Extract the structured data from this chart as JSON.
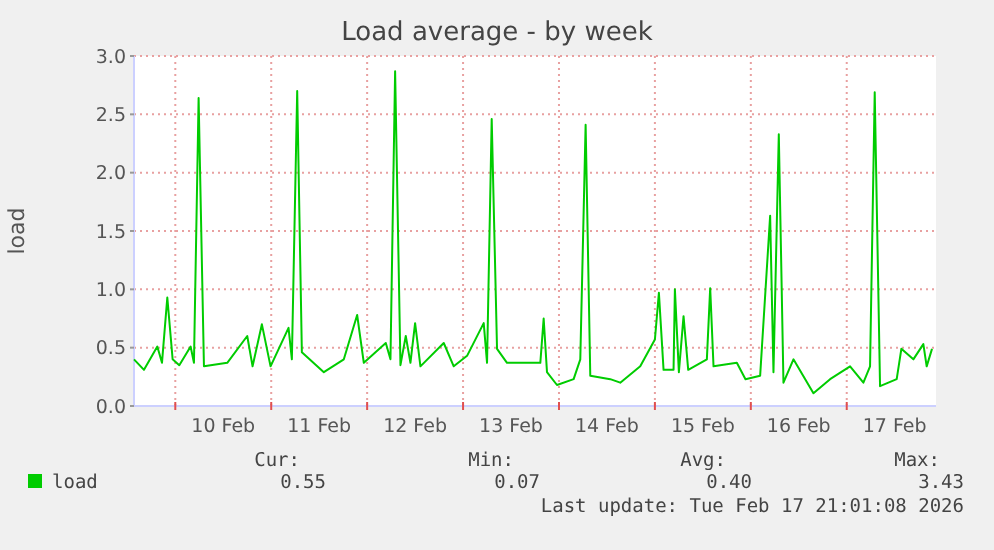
{
  "chart_data": {
    "type": "line",
    "title": "Load average - by week",
    "ylabel": "load",
    "xlim": [
      "2026-02-09T13:40",
      "2026-02-17T22:20"
    ],
    "xticks": [
      {
        "value": "2026-02-10T00:00",
        "label": null
      },
      {
        "value": "2026-02-10T12:00",
        "label": "10 Feb"
      },
      {
        "value": "2026-02-11T00:00",
        "label": null
      },
      {
        "value": "2026-02-11T12:00",
        "label": "11 Feb"
      },
      {
        "value": "2026-02-12T00:00",
        "label": null
      },
      {
        "value": "2026-02-12T12:00",
        "label": "12 Feb"
      },
      {
        "value": "2026-02-13T00:00",
        "label": null
      },
      {
        "value": "2026-02-13T12:00",
        "label": "13 Feb"
      },
      {
        "value": "2026-02-14T00:00",
        "label": null
      },
      {
        "value": "2026-02-14T12:00",
        "label": "14 Feb"
      },
      {
        "value": "2026-02-15T00:00",
        "label": null
      },
      {
        "value": "2026-02-15T12:00",
        "label": "15 Feb"
      },
      {
        "value": "2026-02-16T00:00",
        "label": null
      },
      {
        "value": "2026-02-16T12:00",
        "label": "16 Feb"
      },
      {
        "value": "2026-02-17T00:00",
        "label": null
      },
      {
        "value": "2026-02-17T12:00",
        "label": "17 Feb"
      }
    ],
    "ylim": [
      0,
      3
    ],
    "yticks": [
      {
        "value": 0,
        "label": "0.0"
      },
      {
        "value": 0.5,
        "label": "0.5"
      },
      {
        "value": 1,
        "label": "1.0"
      },
      {
        "value": 1.5,
        "label": "1.5"
      },
      {
        "value": 2,
        "label": "2.0"
      },
      {
        "value": 2.5,
        "label": "2.5"
      },
      {
        "value": 3,
        "label": "3.0"
      }
    ],
    "grid": true,
    "legend": "bottom",
    "x": [
      "2026-02-09T13:40",
      "2026-02-09T16:10",
      "2026-02-09T19:30",
      "2026-02-09T20:40",
      "2026-02-09T22:00",
      "2026-02-09T23:20",
      "2026-02-10T01:00",
      "2026-02-10T03:50",
      "2026-02-10T04:40",
      "2026-02-10T05:50",
      "2026-02-10T07:10",
      "2026-02-10T13:00",
      "2026-02-10T18:00",
      "2026-02-10T19:20",
      "2026-02-10T21:40",
      "2026-02-10T23:50",
      "2026-02-11T04:20",
      "2026-02-11T05:10",
      "2026-02-11T06:30",
      "2026-02-11T07:40",
      "2026-02-11T13:10",
      "2026-02-11T18:10",
      "2026-02-11T21:30",
      "2026-02-11T23:10",
      "2026-02-12T04:40",
      "2026-02-12T05:50",
      "2026-02-12T07:00",
      "2026-02-12T08:20",
      "2026-02-12T09:40",
      "2026-02-12T10:50",
      "2026-02-12T12:00",
      "2026-02-12T13:20",
      "2026-02-12T19:10",
      "2026-02-12T21:40",
      "2026-02-13T01:00",
      "2026-02-13T05:10",
      "2026-02-13T06:00",
      "2026-02-13T07:10",
      "2026-02-13T08:30",
      "2026-02-13T11:00",
      "2026-02-13T19:20",
      "2026-02-13T20:10",
      "2026-02-13T21:00",
      "2026-02-13T23:30",
      "2026-02-14T03:40",
      "2026-02-14T05:20",
      "2026-02-14T06:40",
      "2026-02-14T07:50",
      "2026-02-14T12:50",
      "2026-02-14T15:20",
      "2026-02-14T20:20",
      "2026-02-15T00:00",
      "2026-02-15T01:00",
      "2026-02-15T02:10",
      "2026-02-15T04:40",
      "2026-02-15T05:00",
      "2026-02-15T06:00",
      "2026-02-15T07:10",
      "2026-02-15T08:20",
      "2026-02-15T13:00",
      "2026-02-15T13:50",
      "2026-02-15T14:40",
      "2026-02-15T20:30",
      "2026-02-15T22:40",
      "2026-02-16T02:20",
      "2026-02-16T04:50",
      "2026-02-16T05:40",
      "2026-02-16T07:00",
      "2026-02-16T08:10",
      "2026-02-16T10:40",
      "2026-02-16T15:40",
      "2026-02-16T19:50",
      "2026-02-17T00:50",
      "2026-02-17T04:10",
      "2026-02-17T05:50",
      "2026-02-17T07:00",
      "2026-02-17T08:20",
      "2026-02-17T12:30",
      "2026-02-17T13:40",
      "2026-02-17T16:40",
      "2026-02-17T19:10",
      "2026-02-17T20:00",
      "2026-02-17T21:20"
    ],
    "series": [
      {
        "name": "load",
        "color": "#00cc00",
        "values": [
          0.4,
          0.31,
          0.51,
          0.37,
          0.93,
          0.4,
          0.35,
          0.51,
          0.37,
          2.64,
          0.34,
          0.37,
          0.6,
          0.34,
          0.7,
          0.34,
          0.67,
          0.4,
          2.7,
          0.46,
          0.29,
          0.4,
          0.78,
          0.37,
          0.54,
          0.4,
          2.87,
          0.35,
          0.6,
          0.37,
          0.71,
          0.34,
          0.54,
          0.34,
          0.43,
          0.71,
          0.37,
          2.46,
          0.49,
          0.37,
          0.37,
          0.75,
          0.29,
          0.18,
          0.23,
          0.4,
          2.41,
          0.26,
          0.23,
          0.2,
          0.34,
          0.57,
          0.97,
          0.31,
          0.31,
          1.0,
          0.29,
          0.77,
          0.31,
          0.4,
          1.01,
          0.34,
          0.37,
          0.23,
          0.26,
          1.63,
          0.29,
          2.33,
          0.2,
          0.4,
          0.11,
          0.23,
          0.34,
          0.2,
          0.34,
          2.69,
          0.17,
          0.23,
          0.49,
          0.4,
          0.53,
          0.34,
          0.49
        ]
      }
    ],
    "annotations": [
      "Cur:",
      "Min:",
      "Avg:",
      "Max:",
      "0.55",
      "0.07",
      "0.40",
      "3.43",
      "Last update: Tue Feb 17 21:01:08 2026"
    ]
  }
}
